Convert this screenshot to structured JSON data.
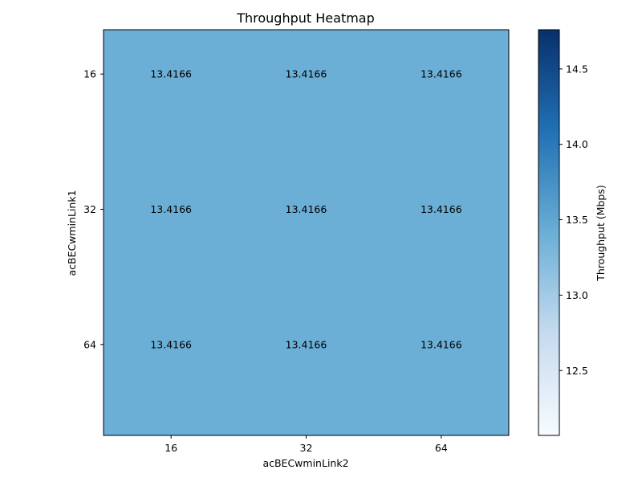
{
  "chart_data": {
    "type": "heatmap",
    "title": "Throughput Heatmap",
    "xlabel": "acBECwminLink2",
    "ylabel": "acBECwminLink1",
    "x_categories": [
      "16",
      "32",
      "64"
    ],
    "y_categories": [
      "16",
      "32",
      "64"
    ],
    "values": [
      [
        13.4166,
        13.4166,
        13.4166
      ],
      [
        13.4166,
        13.4166,
        13.4166
      ],
      [
        13.4166,
        13.4166,
        13.4166
      ]
    ],
    "cell_labels": [
      [
        "13.4166",
        "13.4166",
        "13.4166"
      ],
      [
        "13.4166",
        "13.4166",
        "13.4166"
      ],
      [
        "13.4166",
        "13.4166",
        "13.4166"
      ]
    ],
    "colormap": "Blues",
    "color_range": [
      12.07,
      14.76
    ],
    "colorbar": {
      "label": "Throughput (Mbps)",
      "ticks": [
        12.5,
        13.0,
        13.5,
        14.0,
        14.5
      ],
      "tick_labels": [
        "12.5",
        "13.0",
        "13.5",
        "14.0",
        "14.5"
      ]
    },
    "colors": {
      "cmap_low": "#f7fbff",
      "cmap_q1": "#c6dbef",
      "cmap_mid": "#6baed6",
      "cmap_q3": "#2171b5",
      "cmap_high": "#08306b"
    }
  }
}
